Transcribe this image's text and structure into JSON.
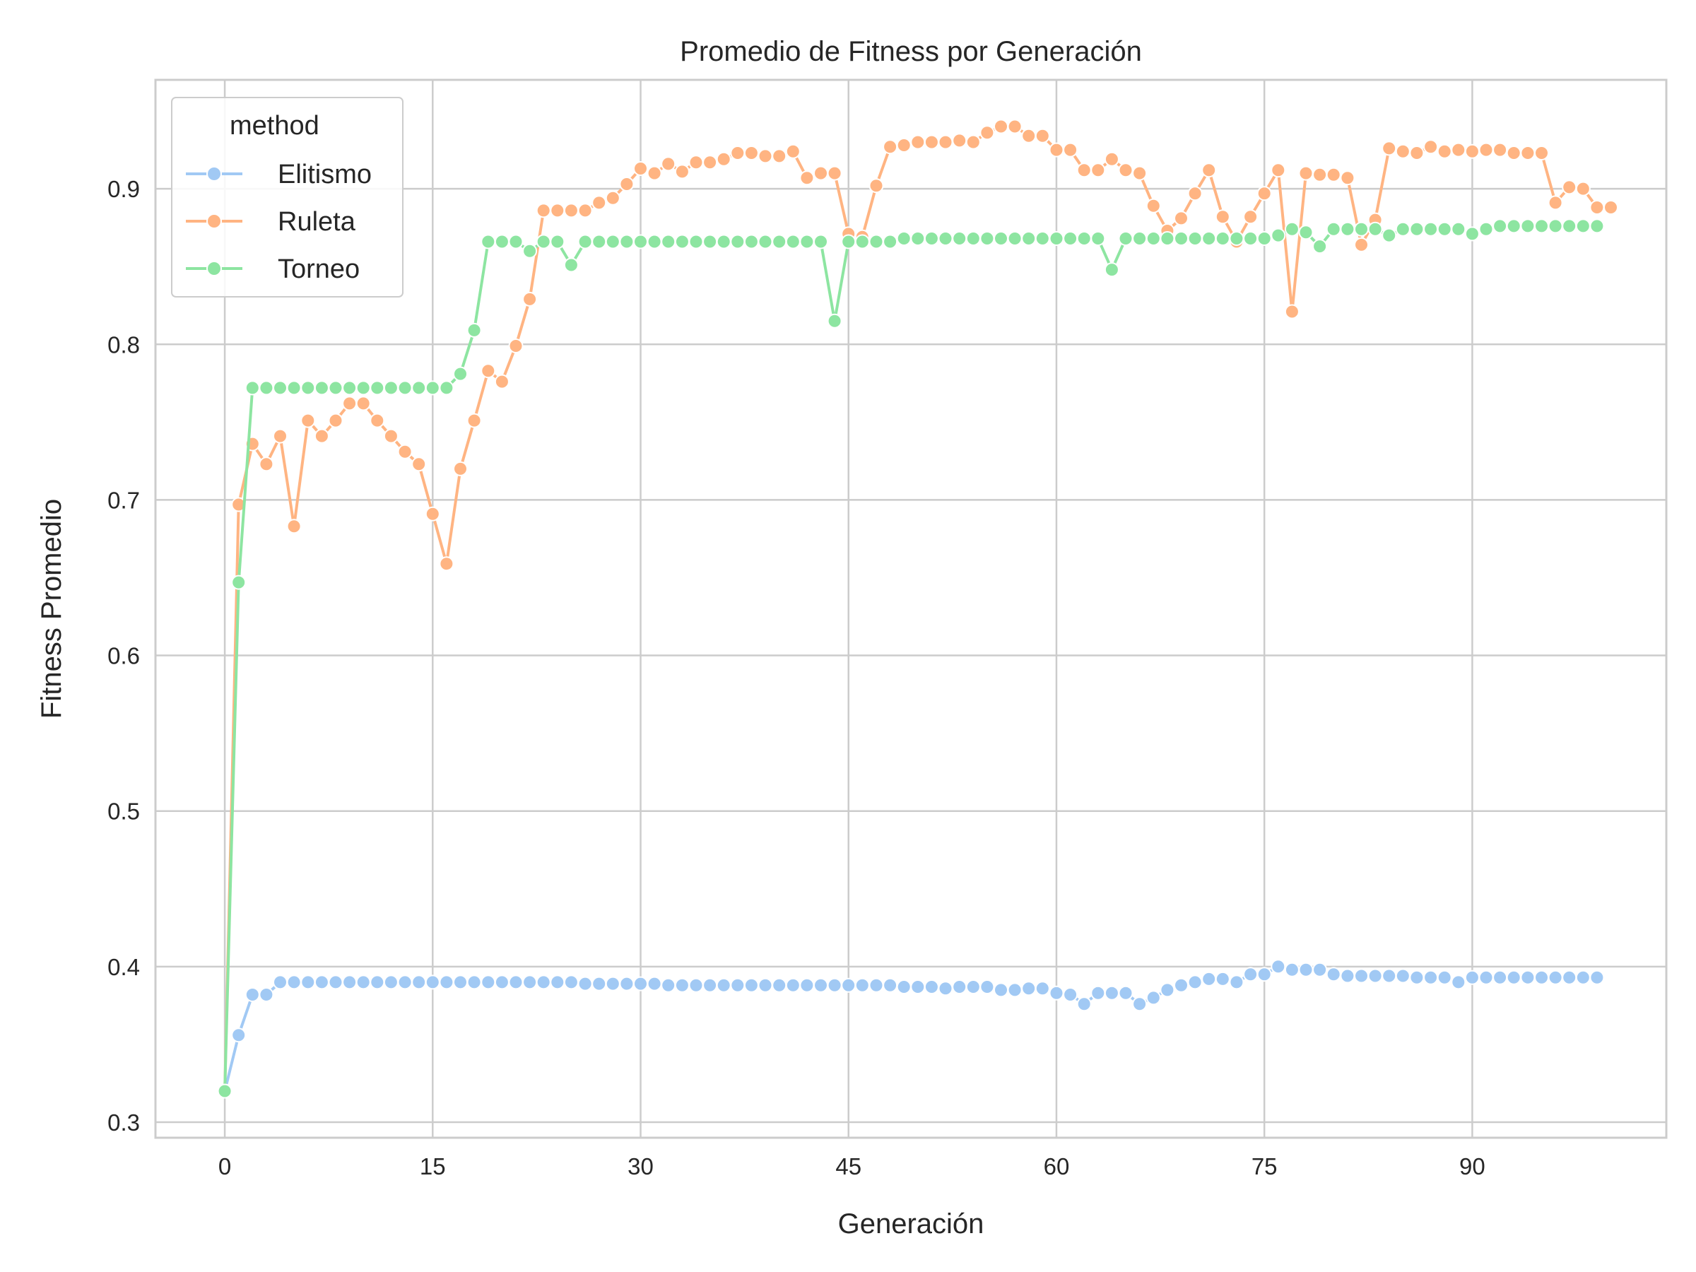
{
  "chart_data": {
    "type": "line",
    "title": "Promedio de Fitness por Generación",
    "xlabel": "Generación",
    "ylabel": "Fitness Promedio",
    "xlim": [
      -5,
      104
    ],
    "ylim": [
      0.29,
      0.97
    ],
    "xticks": [
      0,
      15,
      30,
      45,
      60,
      75,
      90
    ],
    "yticks": [
      0.3,
      0.4,
      0.5,
      0.6,
      0.7,
      0.8,
      0.9
    ],
    "xtick_labels": [
      "0",
      "15",
      "30",
      "45",
      "60",
      "75",
      "90"
    ],
    "ytick_labels": [
      "0.3",
      "0.4",
      "0.5",
      "0.6",
      "0.7",
      "0.8",
      "0.9"
    ],
    "grid": true,
    "markers": true,
    "legend": {
      "title": "method",
      "placement": "top-left"
    },
    "series": [
      {
        "name": "Elitismo",
        "color": "#a1c9f4",
        "values": [
          0.32,
          0.356,
          0.382,
          0.382,
          0.39,
          0.39,
          0.39,
          0.39,
          0.39,
          0.39,
          0.39,
          0.39,
          0.39,
          0.39,
          0.39,
          0.39,
          0.39,
          0.39,
          0.39,
          0.39,
          0.39,
          0.39,
          0.39,
          0.39,
          0.39,
          0.39,
          0.389,
          0.389,
          0.389,
          0.389,
          0.389,
          0.389,
          0.388,
          0.388,
          0.388,
          0.388,
          0.388,
          0.388,
          0.388,
          0.388,
          0.388,
          0.388,
          0.388,
          0.388,
          0.388,
          0.388,
          0.388,
          0.388,
          0.388,
          0.387,
          0.387,
          0.387,
          0.386,
          0.387,
          0.387,
          0.387,
          0.385,
          0.385,
          0.386,
          0.386,
          0.383,
          0.382,
          0.376,
          0.383,
          0.383,
          0.383,
          0.376,
          0.38,
          0.385,
          0.388,
          0.39,
          0.392,
          0.392,
          0.39,
          0.395,
          0.395,
          0.4,
          0.398,
          0.398,
          0.398,
          0.395,
          0.394,
          0.394,
          0.394,
          0.394,
          0.394,
          0.393,
          0.393,
          0.393,
          0.39,
          0.393,
          0.393,
          0.393,
          0.393,
          0.393,
          0.393,
          0.393,
          0.393,
          0.393,
          0.393
        ]
      },
      {
        "name": "Ruleta",
        "color": "#ffb482",
        "values": [
          0.32,
          0.697,
          0.736,
          0.723,
          0.741,
          0.683,
          0.751,
          0.741,
          0.751,
          0.762,
          0.762,
          0.751,
          0.741,
          0.731,
          0.723,
          0.691,
          0.659,
          0.72,
          0.751,
          0.783,
          0.776,
          0.799,
          0.829,
          0.886,
          0.886,
          0.886,
          0.886,
          0.891,
          0.894,
          0.903,
          0.913,
          0.91,
          0.916,
          0.911,
          0.917,
          0.917,
          0.919,
          0.923,
          0.923,
          0.921,
          0.921,
          0.924,
          0.907,
          0.91,
          0.91,
          0.871,
          0.869,
          0.902,
          0.927,
          0.928,
          0.93,
          0.93,
          0.93,
          0.931,
          0.93,
          0.936,
          0.94,
          0.94,
          0.934,
          0.934,
          0.925,
          0.925,
          0.912,
          0.912,
          0.919,
          0.912,
          0.91,
          0.889,
          0.873,
          0.881,
          0.897,
          0.912,
          0.882,
          0.866,
          0.882,
          0.897,
          0.912,
          0.821,
          0.91,
          0.909,
          0.909,
          0.907,
          0.864,
          0.88,
          0.926,
          0.924,
          0.923,
          0.927,
          0.924,
          0.925,
          0.924,
          0.925,
          0.925,
          0.923,
          0.923,
          0.923,
          0.891,
          0.901,
          0.9,
          0.888,
          0.888
        ]
      },
      {
        "name": "Torneo",
        "color": "#8de5a1",
        "values": [
          0.32,
          0.647,
          0.772,
          0.772,
          0.772,
          0.772,
          0.772,
          0.772,
          0.772,
          0.772,
          0.772,
          0.772,
          0.772,
          0.772,
          0.772,
          0.772,
          0.772,
          0.781,
          0.809,
          0.866,
          0.866,
          0.866,
          0.86,
          0.866,
          0.866,
          0.851,
          0.866,
          0.866,
          0.866,
          0.866,
          0.866,
          0.866,
          0.866,
          0.866,
          0.866,
          0.866,
          0.866,
          0.866,
          0.866,
          0.866,
          0.866,
          0.866,
          0.866,
          0.866,
          0.815,
          0.866,
          0.866,
          0.866,
          0.866,
          0.868,
          0.868,
          0.868,
          0.868,
          0.868,
          0.868,
          0.868,
          0.868,
          0.868,
          0.868,
          0.868,
          0.868,
          0.868,
          0.868,
          0.868,
          0.848,
          0.868,
          0.868,
          0.868,
          0.868,
          0.868,
          0.868,
          0.868,
          0.868,
          0.868,
          0.868,
          0.868,
          0.87,
          0.874,
          0.872,
          0.863,
          0.874,
          0.874,
          0.874,
          0.874,
          0.87,
          0.874,
          0.874,
          0.874,
          0.874,
          0.874,
          0.871,
          0.874,
          0.876,
          0.876,
          0.876,
          0.876,
          0.876,
          0.876,
          0.876,
          0.876
        ]
      }
    ]
  }
}
